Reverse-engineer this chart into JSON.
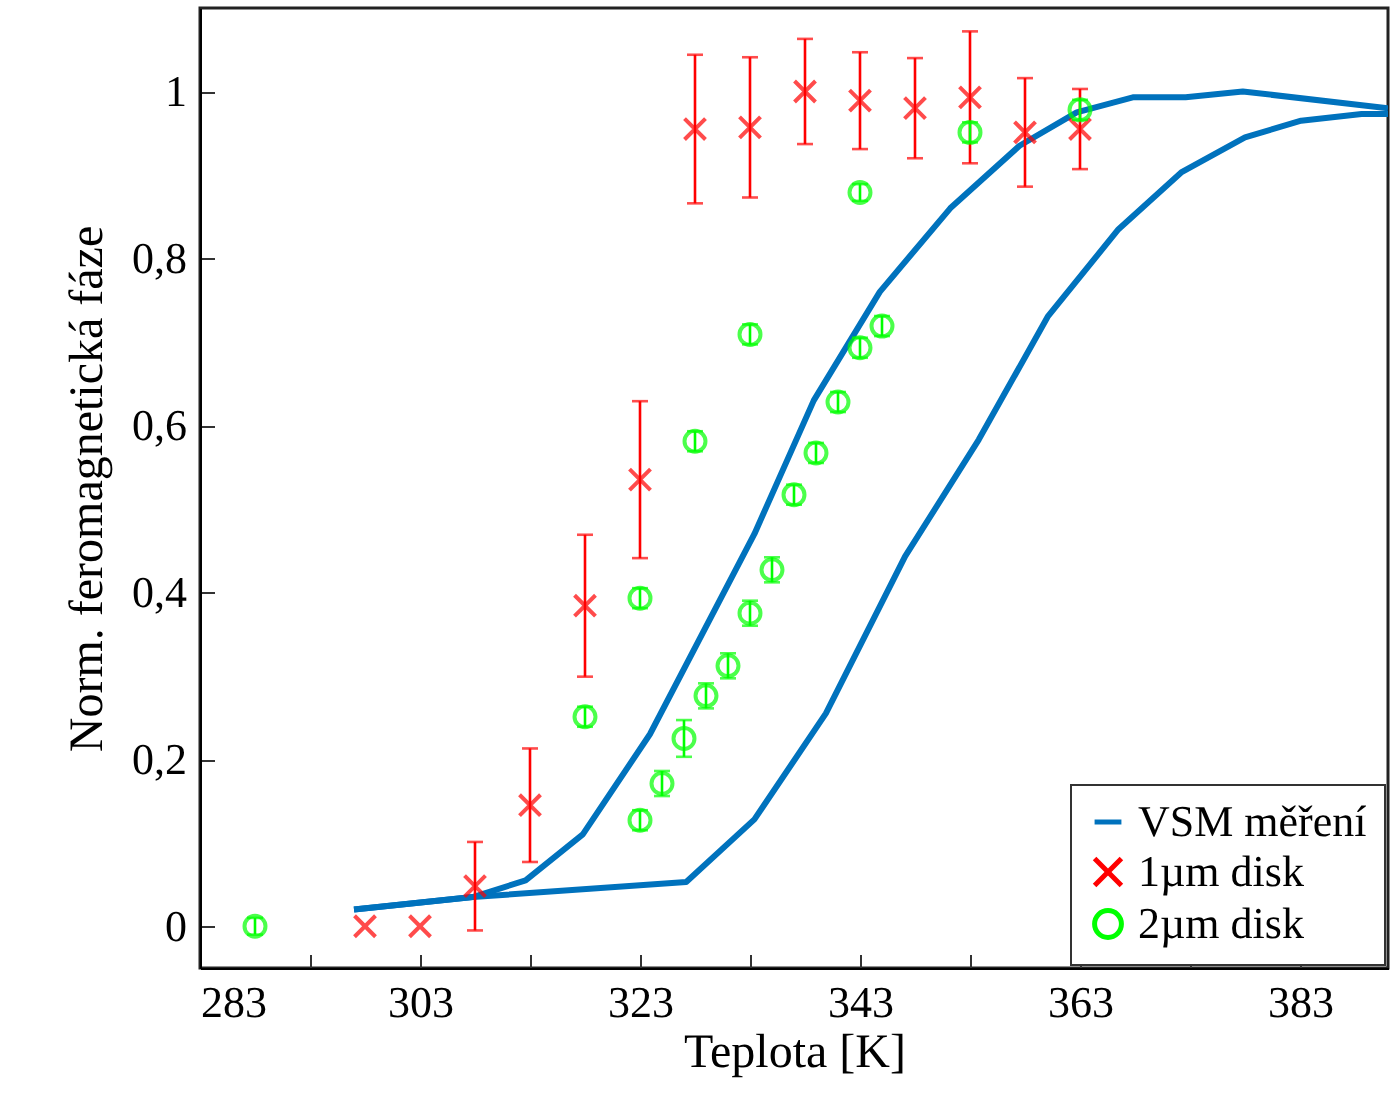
{
  "chart_data": {
    "type": "scatter",
    "xlabel": "Teplota [K]",
    "ylabel": "Norm. feromagnetická fáze",
    "xlim": [
      283,
      391
    ],
    "ylim": [
      -0.05,
      1.1
    ],
    "xticks": [
      283,
      {
        "value": 293,
        "label": null
      },
      303,
      {
        "value": 313,
        "label": null
      },
      323,
      {
        "value": 333,
        "label": null
      },
      343,
      {
        "value": 353,
        "label": null
      },
      363,
      {
        "value": 373,
        "label": null
      },
      383
    ],
    "yticks": [
      0,
      {
        "value": 0.2,
        "label": "0,2"
      },
      {
        "value": 0.4,
        "label": "0,4"
      },
      {
        "value": 0.6,
        "label": "0,6"
      },
      {
        "value": 0.8,
        "label": "0,8"
      },
      1
    ],
    "grid": false,
    "legend": "bottom right",
    "series": [
      {
        "name": "VSM měření",
        "type": "line",
        "color": "#0072bd",
        "x": [
          297,
          307.8,
          312.6,
          317.8,
          323.9,
          333.4,
          338.8,
          344.8,
          351.2,
          357.5,
          362.7,
          367.8,
          372.6,
          377.8,
          391
        ],
        "values": [
          0.02,
          0.035,
          0.055,
          0.11,
          0.23,
          0.47,
          0.63,
          0.76,
          0.86,
          0.935,
          0.975,
          0.993,
          0.993,
          1.0,
          0.98
        ]
      },
      {
        "type": "line",
        "color": "#0072bd",
        "x": [
          297,
          307.8,
          327.2,
          333.4,
          339.9,
          347.1,
          353.8,
          360.1,
          366.5,
          372.2,
          378,
          383.1,
          388.6,
          391
        ],
        "values": [
          0.02,
          0.035,
          0.053,
          0.128,
          0.255,
          0.443,
          0.583,
          0.731,
          0.835,
          0.903,
          0.945,
          0.965,
          0.973,
          0.973
        ]
      },
      {
        "name": "1µm disk",
        "marker": "cross",
        "color": "#ff0000",
        "x": [
          298,
          303,
          308,
          313,
          318,
          323,
          328,
          333,
          338,
          343,
          348,
          353,
          358,
          363
        ],
        "values": [
          0,
          0,
          0.048,
          0.145,
          0.384,
          0.535,
          0.955,
          0.957,
          1.0,
          0.989,
          0.98,
          0.993,
          0.951,
          0.955
        ],
        "errors": [
          null,
          null,
          0.053,
          0.068,
          0.085,
          0.094,
          0.089,
          0.084,
          0.063,
          0.058,
          0.06,
          0.079,
          0.065,
          0.048
        ]
      },
      {
        "name": "2µm disk",
        "marker": "circle",
        "color": "#00ff00",
        "x": [
          288,
          318,
          323,
          323,
          325,
          327,
          328,
          329,
          331,
          333,
          333,
          335,
          337,
          339,
          341,
          343,
          343,
          345,
          353,
          363
        ],
        "values": [
          0,
          0.251,
          0.393,
          0.127,
          0.171,
          0.225,
          0.581,
          0.276,
          0.312,
          0.375,
          0.709,
          0.427,
          0.517,
          0.567,
          0.628,
          0.693,
          0.879,
          0.719,
          0.951,
          0.978
        ],
        "errors": [
          0.01,
          0.012,
          0.012,
          0.012,
          0.015,
          0.022,
          0.012,
          0.015,
          0.015,
          0.015,
          0.012,
          0.015,
          0.012,
          0.012,
          0.012,
          0.012,
          0.01,
          0.012,
          0.012,
          0.012
        ]
      }
    ]
  }
}
